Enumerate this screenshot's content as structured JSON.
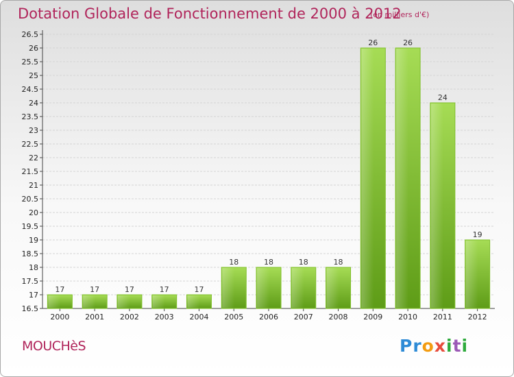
{
  "header": {
    "title": "Dotation Globale de Fonctionnement de 2000 à 2012",
    "unit_note": "(en milliers d'€)"
  },
  "footer": {
    "commune": "MOUCHèS",
    "logo_text": "Proxiti"
  },
  "colors": {
    "accent": "#b0245a",
    "bar_light": "#9ed84a",
    "bar_dark": "#5e9c17"
  },
  "chart_data": {
    "type": "bar",
    "title": "Dotation Globale de Fonctionnement de 2000 à 2012",
    "subtitle": "(en milliers d'€)",
    "categories": [
      "2000",
      "2001",
      "2002",
      "2003",
      "2004",
      "2005",
      "2006",
      "2007",
      "2008",
      "2009",
      "2010",
      "2011",
      "2012"
    ],
    "values": [
      17,
      17,
      17,
      17,
      17,
      18,
      18,
      18,
      18,
      26,
      26,
      24,
      19
    ],
    "ylim": [
      16.5,
      26.5
    ],
    "yticks": [
      "16.5",
      "17",
      "17.5",
      "18",
      "18.5",
      "19",
      "19.5",
      "20",
      "20.5",
      "21",
      "21.5",
      "22",
      "22.5",
      "23",
      "23.5",
      "24",
      "24.5",
      "25",
      "25.5",
      "26",
      "26.5"
    ],
    "grid": true,
    "legend": "none"
  }
}
